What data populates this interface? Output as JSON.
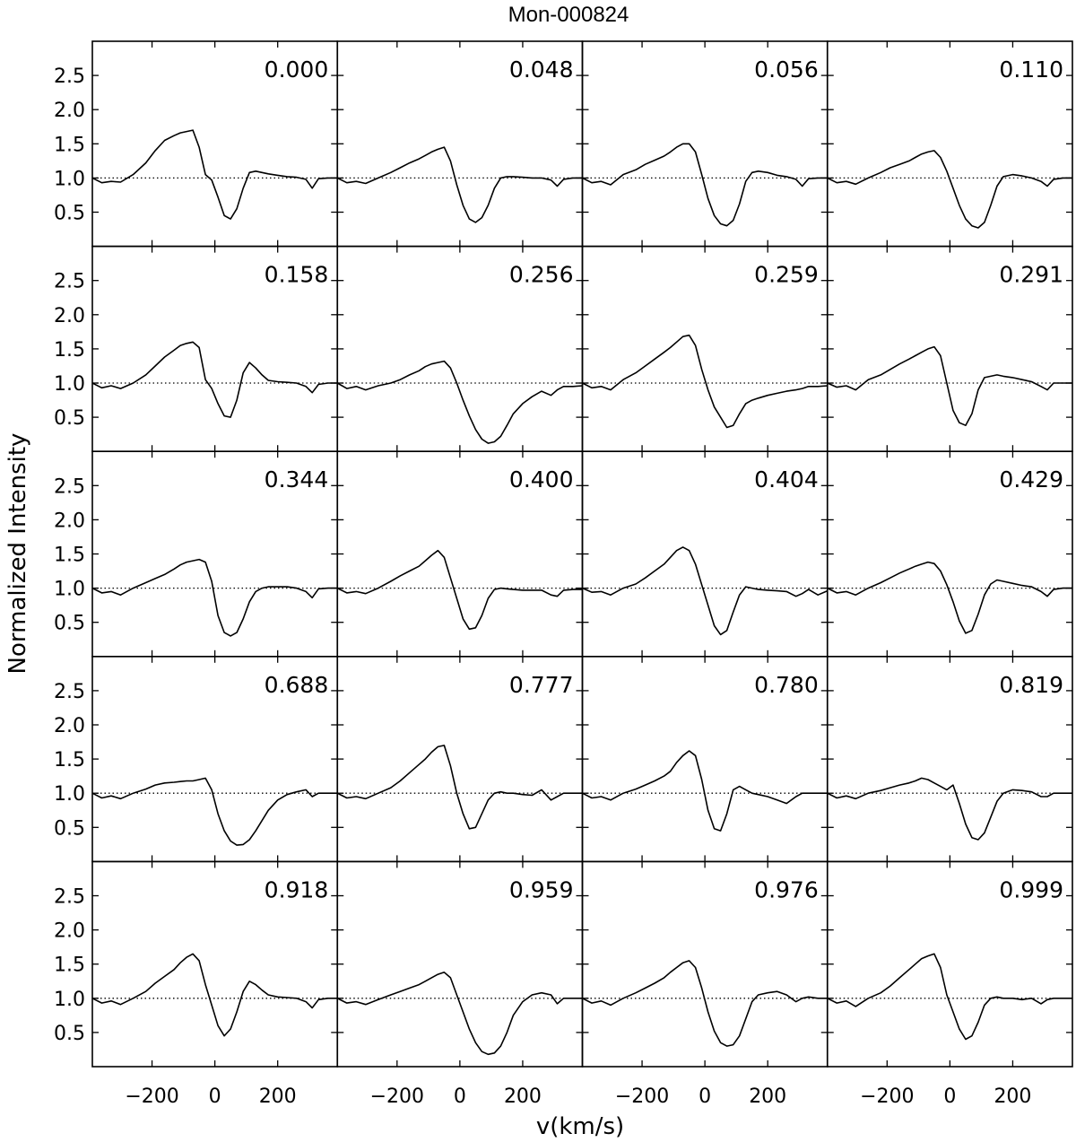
{
  "chart_data": {
    "type": "line",
    "title": "Mon-000824",
    "xlabel": "v(km/s)",
    "ylabel": "Normalized Intensity",
    "grid": false,
    "legend": "none",
    "layout": {
      "rows": 5,
      "cols": 4
    },
    "xlim": [
      -390,
      390
    ],
    "ylim": [
      0.0,
      3.0
    ],
    "x_ticks": [
      -200,
      0,
      200
    ],
    "x_tick_labels": [
      "−200",
      "0",
      "200"
    ],
    "y_ticks": [
      0.5,
      1.0,
      1.5,
      2.0,
      2.5
    ],
    "y_tick_labels": [
      "0.5",
      "1.0",
      "1.5",
      "2.0",
      "2.5"
    ],
    "continuum_level": 1.0,
    "x": [
      -390,
      -360,
      -330,
      -300,
      -260,
      -220,
      -190,
      -160,
      -130,
      -110,
      -90,
      -70,
      -50,
      -30,
      -10,
      10,
      30,
      50,
      70,
      90,
      110,
      130,
      150,
      170,
      200,
      230,
      260,
      290,
      310,
      330,
      360,
      390
    ],
    "panels": [
      {
        "phase": "0.000",
        "y": [
          1.0,
          0.93,
          0.95,
          0.94,
          1.05,
          1.22,
          1.4,
          1.55,
          1.62,
          1.66,
          1.68,
          1.7,
          1.45,
          1.05,
          0.97,
          0.72,
          0.45,
          0.4,
          0.55,
          0.85,
          1.08,
          1.1,
          1.08,
          1.06,
          1.04,
          1.02,
          1.01,
          0.98,
          0.85,
          0.99,
          1.0,
          1.0
        ]
      },
      {
        "phase": "0.048",
        "y": [
          1.0,
          0.93,
          0.95,
          0.92,
          1.0,
          1.08,
          1.15,
          1.22,
          1.28,
          1.33,
          1.38,
          1.42,
          1.45,
          1.25,
          0.9,
          0.6,
          0.4,
          0.35,
          0.42,
          0.6,
          0.85,
          1.0,
          1.02,
          1.02,
          1.01,
          1.0,
          1.0,
          0.97,
          0.88,
          0.98,
          1.0,
          1.0
        ]
      },
      {
        "phase": "0.056",
        "y": [
          1.0,
          0.93,
          0.95,
          0.9,
          1.05,
          1.12,
          1.2,
          1.26,
          1.32,
          1.38,
          1.45,
          1.5,
          1.5,
          1.38,
          1.05,
          0.7,
          0.45,
          0.33,
          0.3,
          0.38,
          0.62,
          0.95,
          1.08,
          1.1,
          1.08,
          1.04,
          1.02,
          0.98,
          0.88,
          0.99,
          1.0,
          1.0
        ]
      },
      {
        "phase": "0.110",
        "y": [
          1.0,
          0.93,
          0.95,
          0.91,
          1.0,
          1.08,
          1.15,
          1.2,
          1.25,
          1.3,
          1.35,
          1.38,
          1.4,
          1.3,
          1.1,
          0.85,
          0.6,
          0.4,
          0.3,
          0.27,
          0.35,
          0.6,
          0.88,
          1.02,
          1.05,
          1.03,
          1.0,
          0.95,
          0.88,
          0.98,
          1.0,
          1.0
        ]
      },
      {
        "phase": "0.158",
        "y": [
          1.0,
          0.93,
          0.96,
          0.92,
          1.0,
          1.12,
          1.25,
          1.38,
          1.48,
          1.55,
          1.58,
          1.6,
          1.52,
          1.05,
          0.92,
          0.7,
          0.52,
          0.5,
          0.75,
          1.15,
          1.3,
          1.22,
          1.12,
          1.04,
          1.02,
          1.01,
          1.0,
          0.95,
          0.86,
          0.98,
          1.0,
          1.0
        ]
      },
      {
        "phase": "0.256",
        "y": [
          1.0,
          0.92,
          0.95,
          0.9,
          0.96,
          1.0,
          1.05,
          1.12,
          1.18,
          1.24,
          1.28,
          1.3,
          1.32,
          1.22,
          1.0,
          0.75,
          0.52,
          0.32,
          0.18,
          0.12,
          0.14,
          0.22,
          0.38,
          0.55,
          0.7,
          0.8,
          0.88,
          0.82,
          0.9,
          0.95,
          0.95,
          0.96
        ]
      },
      {
        "phase": "0.259",
        "y": [
          1.0,
          0.93,
          0.95,
          0.9,
          1.05,
          1.15,
          1.25,
          1.35,
          1.45,
          1.52,
          1.6,
          1.68,
          1.7,
          1.55,
          1.2,
          0.9,
          0.65,
          0.5,
          0.35,
          0.38,
          0.55,
          0.7,
          0.75,
          0.78,
          0.82,
          0.85,
          0.88,
          0.9,
          0.92,
          0.95,
          0.95,
          0.96
        ]
      },
      {
        "phase": "0.291",
        "y": [
          1.0,
          0.94,
          0.96,
          0.9,
          1.05,
          1.12,
          1.2,
          1.28,
          1.35,
          1.4,
          1.45,
          1.5,
          1.53,
          1.4,
          1.0,
          0.6,
          0.42,
          0.38,
          0.55,
          0.9,
          1.08,
          1.1,
          1.12,
          1.1,
          1.08,
          1.05,
          1.02,
          0.95,
          0.9,
          1.0,
          1.0,
          1.0
        ]
      },
      {
        "phase": "0.344",
        "y": [
          1.0,
          0.93,
          0.95,
          0.9,
          1.0,
          1.08,
          1.14,
          1.2,
          1.28,
          1.34,
          1.38,
          1.4,
          1.42,
          1.38,
          1.1,
          0.6,
          0.35,
          0.3,
          0.35,
          0.55,
          0.8,
          0.95,
          1.0,
          1.02,
          1.02,
          1.02,
          1.0,
          0.95,
          0.86,
          0.99,
          1.0,
          1.0
        ]
      },
      {
        "phase": "0.400",
        "y": [
          1.0,
          0.93,
          0.95,
          0.92,
          1.0,
          1.1,
          1.18,
          1.25,
          1.32,
          1.4,
          1.48,
          1.55,
          1.45,
          1.15,
          0.85,
          0.55,
          0.4,
          0.42,
          0.6,
          0.85,
          0.98,
          1.0,
          0.99,
          0.98,
          0.97,
          0.97,
          0.97,
          0.9,
          0.88,
          0.97,
          0.98,
          0.98
        ]
      },
      {
        "phase": "0.404",
        "y": [
          1.0,
          0.94,
          0.95,
          0.9,
          1.0,
          1.06,
          1.15,
          1.25,
          1.35,
          1.45,
          1.55,
          1.6,
          1.55,
          1.35,
          1.05,
          0.75,
          0.45,
          0.32,
          0.38,
          0.65,
          0.9,
          1.02,
          1.0,
          0.98,
          0.97,
          0.96,
          0.95,
          0.88,
          0.92,
          0.98,
          0.9,
          0.96
        ]
      },
      {
        "phase": "0.429",
        "y": [
          1.0,
          0.93,
          0.95,
          0.9,
          1.0,
          1.08,
          1.15,
          1.22,
          1.28,
          1.32,
          1.35,
          1.38,
          1.36,
          1.25,
          1.05,
          0.8,
          0.52,
          0.34,
          0.38,
          0.62,
          0.9,
          1.06,
          1.12,
          1.1,
          1.07,
          1.04,
          1.02,
          0.95,
          0.88,
          0.98,
          1.0,
          1.0
        ]
      },
      {
        "phase": "0.688",
        "y": [
          1.0,
          0.93,
          0.96,
          0.92,
          1.0,
          1.06,
          1.12,
          1.15,
          1.16,
          1.17,
          1.18,
          1.18,
          1.2,
          1.22,
          1.05,
          0.7,
          0.45,
          0.3,
          0.24,
          0.25,
          0.32,
          0.45,
          0.6,
          0.75,
          0.9,
          0.98,
          1.02,
          1.05,
          0.95,
          1.0,
          1.0,
          1.0
        ]
      },
      {
        "phase": "0.777",
        "y": [
          1.0,
          0.93,
          0.95,
          0.92,
          1.0,
          1.08,
          1.18,
          1.3,
          1.42,
          1.5,
          1.6,
          1.68,
          1.7,
          1.4,
          1.0,
          0.7,
          0.48,
          0.5,
          0.7,
          0.9,
          1.0,
          1.02,
          1.0,
          1.0,
          0.98,
          0.97,
          1.05,
          0.9,
          0.95,
          1.0,
          1.0,
          1.0
        ]
      },
      {
        "phase": "0.780",
        "y": [
          1.0,
          0.93,
          0.95,
          0.9,
          1.0,
          1.06,
          1.12,
          1.18,
          1.25,
          1.32,
          1.45,
          1.55,
          1.62,
          1.55,
          1.2,
          0.75,
          0.48,
          0.45,
          0.7,
          1.05,
          1.1,
          1.05,
          1.0,
          0.98,
          0.95,
          0.9,
          0.85,
          0.95,
          1.0,
          1.0,
          1.0,
          1.0
        ]
      },
      {
        "phase": "0.819",
        "y": [
          1.0,
          0.93,
          0.96,
          0.92,
          1.0,
          1.04,
          1.08,
          1.12,
          1.15,
          1.18,
          1.22,
          1.2,
          1.15,
          1.1,
          1.05,
          1.12,
          0.85,
          0.55,
          0.35,
          0.32,
          0.42,
          0.65,
          0.88,
          1.0,
          1.05,
          1.04,
          1.02,
          0.95,
          0.95,
          1.0,
          1.0,
          1.0
        ]
      },
      {
        "phase": "0.918",
        "y": [
          1.0,
          0.93,
          0.96,
          0.91,
          1.0,
          1.1,
          1.22,
          1.32,
          1.42,
          1.52,
          1.6,
          1.65,
          1.55,
          1.2,
          0.9,
          0.6,
          0.45,
          0.55,
          0.8,
          1.1,
          1.25,
          1.2,
          1.12,
          1.05,
          1.02,
          1.01,
          1.0,
          0.95,
          0.86,
          0.98,
          1.0,
          1.0
        ]
      },
      {
        "phase": "0.959",
        "y": [
          1.0,
          0.93,
          0.95,
          0.91,
          0.98,
          1.05,
          1.1,
          1.15,
          1.2,
          1.25,
          1.3,
          1.35,
          1.38,
          1.3,
          1.05,
          0.8,
          0.55,
          0.35,
          0.22,
          0.18,
          0.2,
          0.3,
          0.5,
          0.75,
          0.95,
          1.05,
          1.08,
          1.05,
          0.92,
          1.0,
          1.0,
          1.0
        ]
      },
      {
        "phase": "0.976",
        "y": [
          1.0,
          0.93,
          0.96,
          0.9,
          1.0,
          1.08,
          1.15,
          1.22,
          1.3,
          1.38,
          1.45,
          1.52,
          1.55,
          1.45,
          1.15,
          0.8,
          0.52,
          0.35,
          0.3,
          0.32,
          0.45,
          0.7,
          0.95,
          1.05,
          1.08,
          1.1,
          1.05,
          0.95,
          1.0,
          1.02,
          1.0,
          1.0
        ]
      },
      {
        "phase": "0.999",
        "y": [
          1.0,
          0.93,
          0.96,
          0.88,
          1.0,
          1.08,
          1.18,
          1.3,
          1.42,
          1.5,
          1.58,
          1.62,
          1.65,
          1.45,
          1.05,
          0.8,
          0.55,
          0.4,
          0.45,
          0.65,
          0.9,
          1.0,
          1.02,
          1.0,
          1.0,
          0.98,
          1.0,
          0.92,
          0.98,
          1.0,
          1.0,
          1.0
        ]
      }
    ]
  }
}
